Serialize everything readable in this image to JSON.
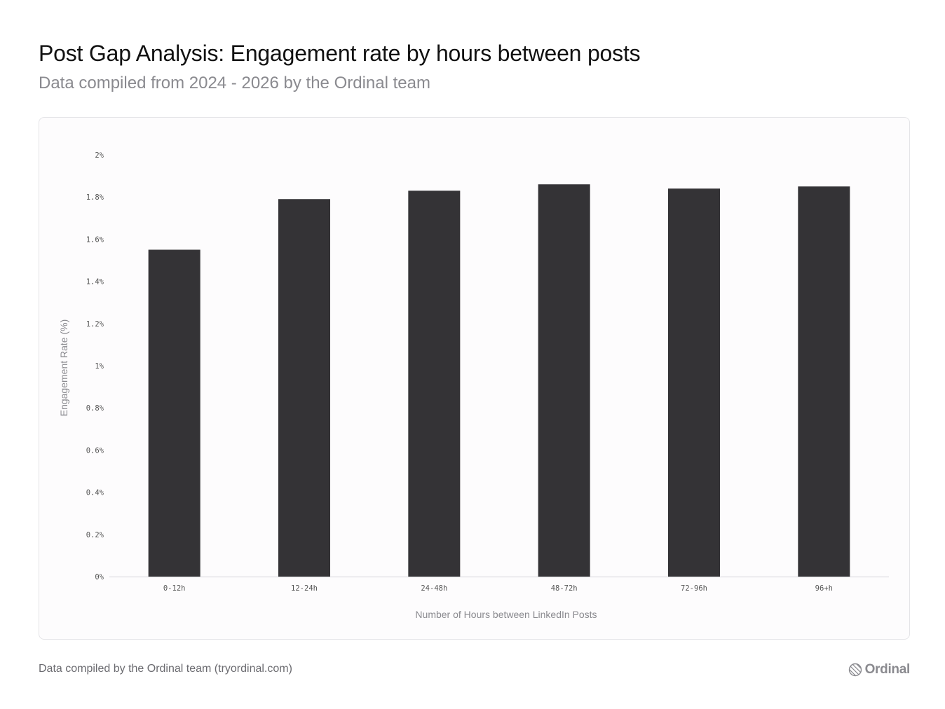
{
  "header": {
    "title": "Post Gap Analysis: Engagement rate by hours between posts",
    "subtitle": "Data compiled from 2024 - 2026 by the Ordinal team"
  },
  "footer": {
    "note": "Data compiled by the Ordinal team (tryordinal.com)",
    "brand_name": "Ordinal",
    "brand_icon": "ordinal-logo-icon"
  },
  "colors": {
    "bar": "#343336",
    "axis_line": "#d4d4d8",
    "muted_text": "#8a8a8f"
  },
  "chart_data": {
    "type": "bar",
    "categories": [
      "0-12h",
      "12-24h",
      "24-48h",
      "48-72h",
      "72-96h",
      "96+h"
    ],
    "values": [
      1.55,
      1.79,
      1.83,
      1.86,
      1.84,
      1.85
    ],
    "xlabel": "Number of Hours between LinkedIn Posts",
    "ylabel": "Engagement Rate (%)",
    "ylim": [
      0,
      2
    ],
    "yticks": [
      {
        "value": 0,
        "label": "0%"
      },
      {
        "value": 0.2,
        "label": "0.2%"
      },
      {
        "value": 0.4,
        "label": "0.4%"
      },
      {
        "value": 0.6,
        "label": "0.6%"
      },
      {
        "value": 0.8,
        "label": "0.8%"
      },
      {
        "value": 1.0,
        "label": "1%"
      },
      {
        "value": 1.2,
        "label": "1.2%"
      },
      {
        "value": 1.4,
        "label": "1.4%"
      },
      {
        "value": 1.6,
        "label": "1.6%"
      },
      {
        "value": 1.8,
        "label": "1.8%"
      },
      {
        "value": 2.0,
        "label": "2%"
      }
    ],
    "grid": false,
    "legend": "none"
  }
}
